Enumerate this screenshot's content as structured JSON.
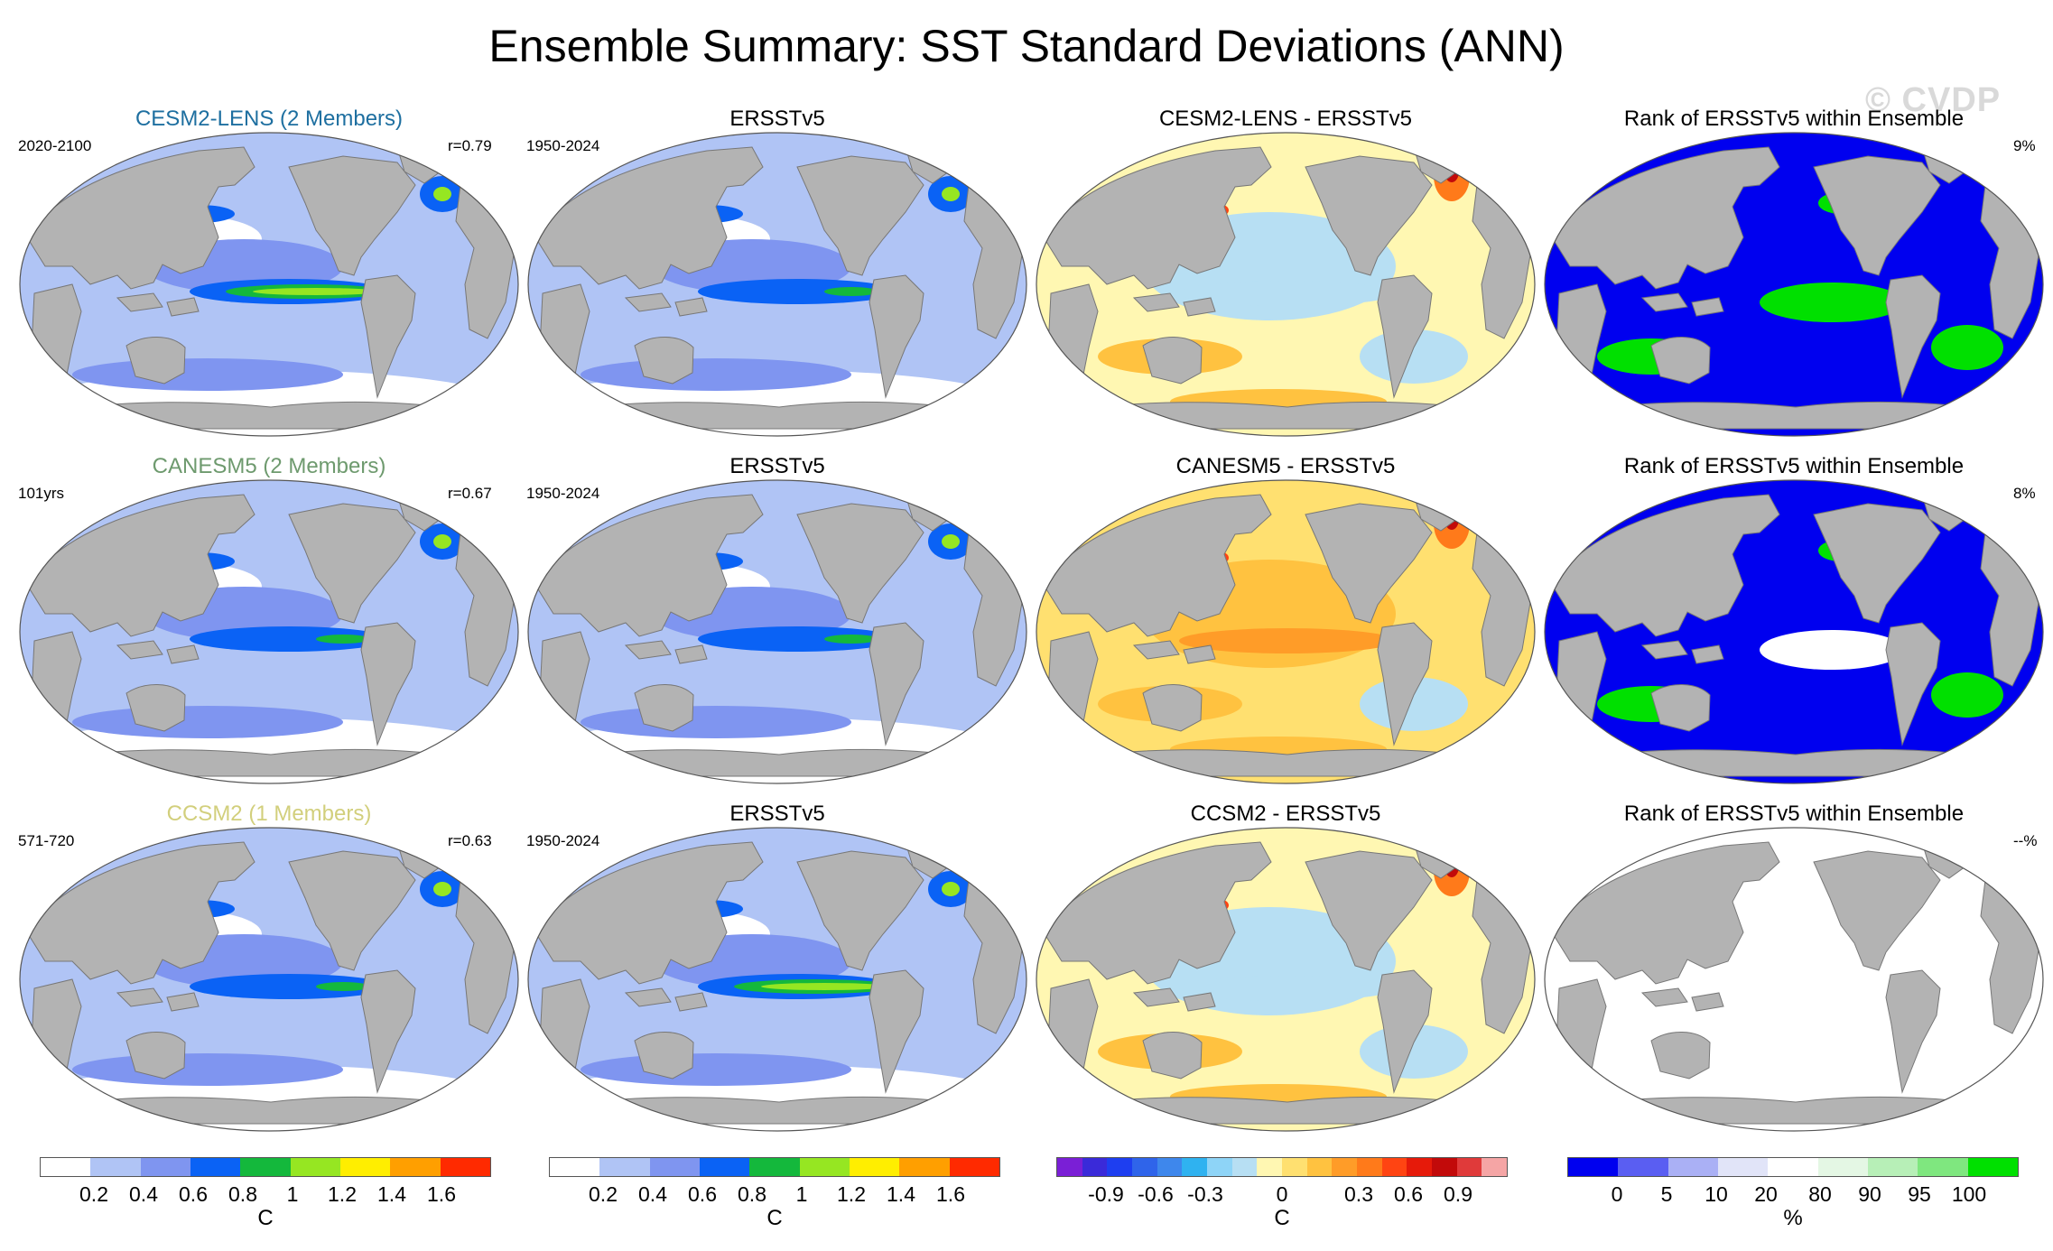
{
  "title": "Ensemble Summary: SST Standard Deviations (ANN)",
  "watermark": "© CVDP",
  "colors": {
    "land": "#b3b3b3",
    "std_scale": [
      "#ffffff",
      "#b0c4f5",
      "#7f95f0",
      "#0a62f5",
      "#14b83c",
      "#96e622",
      "#ffee00",
      "#ff9f00",
      "#ff2a00"
    ],
    "diff_scale": [
      "#7a1fd6",
      "#3a2ad9",
      "#1e3ef0",
      "#2f64ea",
      "#3e87ec",
      "#2fb2f0",
      "#8ed4f7",
      "#b7dff3",
      "#fff7b2",
      "#ffe070",
      "#ffc240",
      "#ff9c28",
      "#ff7a1a",
      "#ff4412",
      "#e61a0a",
      "#c20a0a",
      "#e03a3a",
      "#f5a5a5"
    ],
    "rank_scale": [
      "#0000ef",
      "#5a5ef2",
      "#aab0f5",
      "#e1e4f8",
      "#ffffff",
      "#e4f7e4",
      "#b7efb7",
      "#7fe77f",
      "#00e000"
    ]
  },
  "rows": [
    {
      "model_title": "CESM2-LENS (2 Members)",
      "model_color": "#1e6fa0",
      "model_period": "2020-2100",
      "model_r": "r=0.79",
      "obs_title": "ERSSTv5",
      "obs_period": "1950-2024",
      "diff_title": "CESM2-LENS - ERSSTv5",
      "rank_title": "Rank of ERSSTv5 within Ensemble",
      "rank_pct": "9%"
    },
    {
      "model_title": "CANESM5 (2 Members)",
      "model_color": "#6e9a6e",
      "model_period": "101yrs",
      "model_r": "r=0.67",
      "obs_title": "ERSSTv5",
      "obs_period": "1950-2024",
      "diff_title": "CANESM5 - ERSSTv5",
      "rank_title": "Rank of ERSSTv5 within Ensemble",
      "rank_pct": "8%"
    },
    {
      "model_title": "CCSM2 (1 Members)",
      "model_color": "#d2cf7c",
      "model_period": "571-720",
      "model_r": "r=0.63",
      "obs_title": "ERSSTv5",
      "obs_period": "1950-2024",
      "diff_title": "CCSM2 - ERSSTv5",
      "rank_title": "Rank of ERSSTv5 within Ensemble",
      "rank_pct": "--%"
    }
  ],
  "colorbars": {
    "std": {
      "ticks": [
        "0.2",
        "0.4",
        "0.6",
        "0.8",
        "1",
        "1.2",
        "1.4",
        "1.6"
      ],
      "unit": "C"
    },
    "diff": {
      "ticks": [
        "-0.9",
        "-0.6",
        "-0.3",
        "0",
        "0.3",
        "0.6",
        "0.9"
      ],
      "unit": "C"
    },
    "rank": {
      "ticks": [
        "0",
        "5",
        "10",
        "20",
        "80",
        "90",
        "95",
        "100"
      ],
      "unit": "%"
    }
  }
}
